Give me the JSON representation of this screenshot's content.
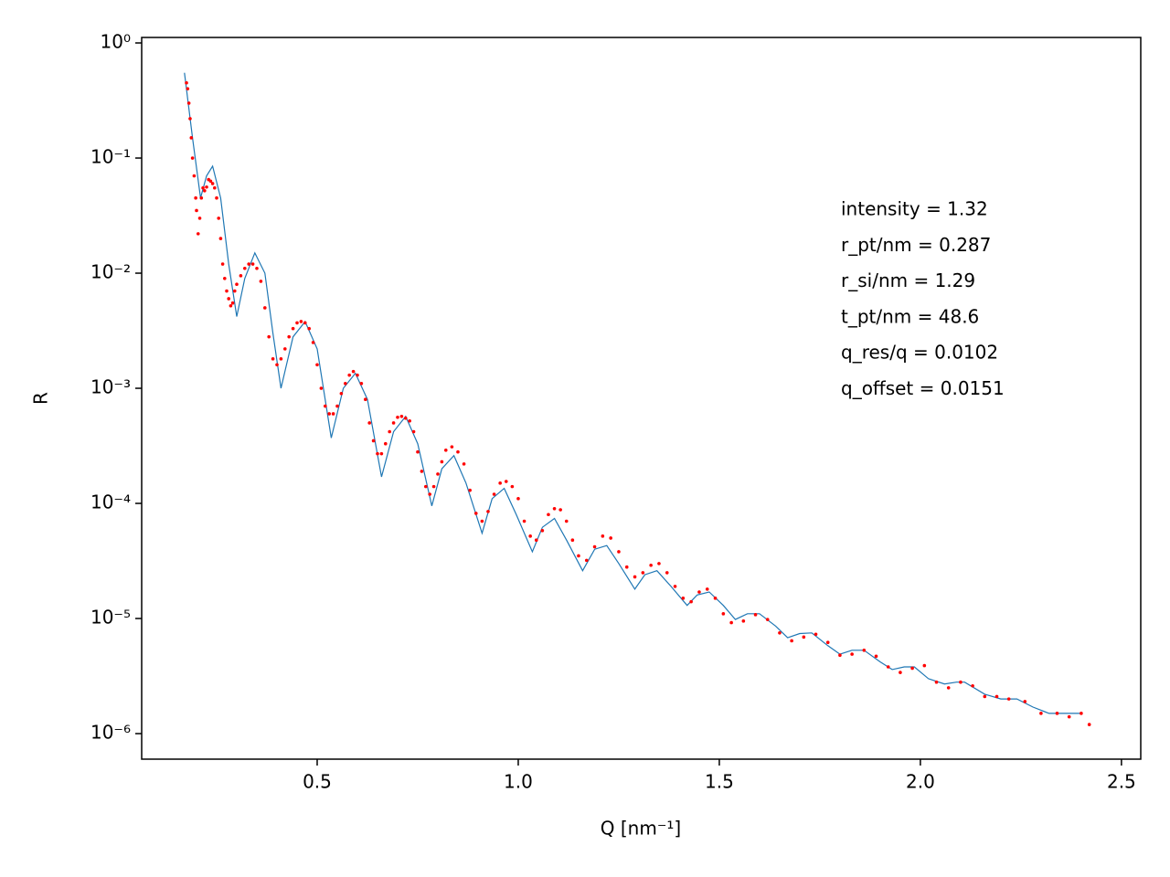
{
  "chart_data": {
    "type": "scatter",
    "xlabel": "Q [nm⁻¹]",
    "ylabel": "R",
    "xlim": [
      0.0636,
      2.548
    ],
    "ylim": [
      6e-07,
      1.116
    ],
    "log_y": true,
    "xticks": [
      0.5,
      {
        "value": 1.0,
        "label": "1.0"
      },
      1.5,
      {
        "value": 2.0,
        "label": "2.0"
      },
      2.5
    ],
    "yticks": [
      {
        "value": 1,
        "label": "10⁰"
      },
      {
        "value": 0.1,
        "label": "10⁻¹"
      },
      {
        "value": 0.01,
        "label": "10⁻²"
      },
      {
        "value": 0.001,
        "label": "10⁻³"
      },
      {
        "value": 0.0001,
        "label": "10⁻⁴"
      },
      {
        "value": 1e-05,
        "label": "10⁻⁵"
      },
      {
        "value": 1e-06,
        "label": "10⁻⁶"
      }
    ],
    "annotations": [
      "intensity = 1.32",
      "r_pt/nm = 0.287",
      "r_si/nm = 1.29",
      "t_pt/nm = 48.6",
      "q_res/q = 0.0102",
      "q_offset = 0.0151"
    ],
    "fit": {
      "color": "#1f77b4",
      "x": [
        0.17,
        0.19,
        0.21,
        0.225,
        0.24,
        0.26,
        0.28,
        0.3,
        0.32,
        0.345,
        0.37,
        0.39,
        0.41,
        0.44,
        0.47,
        0.5,
        0.535,
        0.565,
        0.595,
        0.625,
        0.66,
        0.69,
        0.72,
        0.75,
        0.785,
        0.81,
        0.84,
        0.87,
        0.91,
        0.935,
        0.965,
        0.995,
        1.035,
        1.06,
        1.09,
        1.12,
        1.16,
        1.19,
        1.22,
        1.25,
        1.29,
        1.315,
        1.345,
        1.38,
        1.42,
        1.445,
        1.475,
        1.51,
        1.54,
        1.57,
        1.6,
        1.64,
        1.67,
        1.7,
        1.73,
        1.77,
        1.8,
        1.83,
        1.86,
        1.9,
        1.93,
        1.96,
        1.985,
        2.02,
        2.06,
        2.09,
        2.11,
        2.16,
        2.2,
        2.24,
        2.28,
        2.32,
        2.36,
        2.4
      ],
      "values": [
        0.55,
        0.15,
        0.045,
        0.07,
        0.085,
        0.045,
        0.012,
        0.0042,
        0.009,
        0.015,
        0.01,
        0.003,
        0.001,
        0.0028,
        0.0038,
        0.0022,
        0.00037,
        0.001,
        0.00135,
        0.0008,
        0.00017,
        0.00042,
        0.00057,
        0.00033,
        9.5e-05,
        0.0002,
        0.00026,
        0.00015,
        5.5e-05,
        0.00011,
        0.000135,
        8e-05,
        3.8e-05,
        6.2e-05,
        7.4e-05,
        4.8e-05,
        2.6e-05,
        4e-05,
        4.3e-05,
        3e-05,
        1.8e-05,
        2.4e-05,
        2.6e-05,
        1.9e-05,
        1.3e-05,
        1.6e-05,
        1.7e-05,
        1.3e-05,
        9.8e-06,
        1.1e-05,
        1.1e-05,
        8.6e-06,
        6.8e-06,
        7.4e-06,
        7.5e-06,
        5.8e-06,
        4.9e-06,
        5.3e-06,
        5.3e-06,
        4.2e-06,
        3.6e-06,
        3.8e-06,
        3.8e-06,
        3e-06,
        2.7e-06,
        2.8e-06,
        2.8e-06,
        2.2e-06,
        2e-06,
        2e-06,
        1.7e-06,
        1.5e-06,
        1.5e-06,
        1.5e-06
      ]
    },
    "data": {
      "color": "#ff0000",
      "x": [
        0.175,
        0.178,
        0.181,
        0.184,
        0.187,
        0.19,
        0.194,
        0.198,
        0.2,
        0.204,
        0.208,
        0.212,
        0.216,
        0.22,
        0.225,
        0.23,
        0.235,
        0.24,
        0.245,
        0.25,
        0.255,
        0.26,
        0.265,
        0.27,
        0.275,
        0.28,
        0.285,
        0.29,
        0.295,
        0.3,
        0.31,
        0.32,
        0.33,
        0.34,
        0.35,
        0.36,
        0.37,
        0.38,
        0.39,
        0.4,
        0.41,
        0.42,
        0.43,
        0.44,
        0.45,
        0.46,
        0.47,
        0.48,
        0.49,
        0.5,
        0.51,
        0.52,
        0.53,
        0.54,
        0.55,
        0.56,
        0.57,
        0.58,
        0.59,
        0.6,
        0.61,
        0.62,
        0.63,
        0.64,
        0.65,
        0.66,
        0.67,
        0.68,
        0.69,
        0.7,
        0.71,
        0.72,
        0.73,
        0.74,
        0.75,
        0.76,
        0.77,
        0.78,
        0.79,
        0.8,
        0.81,
        0.82,
        0.835,
        0.85,
        0.865,
        0.88,
        0.895,
        0.91,
        0.925,
        0.94,
        0.955,
        0.97,
        0.985,
        1.0,
        1.015,
        1.03,
        1.045,
        1.06,
        1.075,
        1.09,
        1.105,
        1.12,
        1.135,
        1.15,
        1.17,
        1.19,
        1.21,
        1.23,
        1.25,
        1.27,
        1.29,
        1.31,
        1.33,
        1.35,
        1.37,
        1.39,
        1.41,
        1.43,
        1.45,
        1.47,
        1.49,
        1.51,
        1.53,
        1.56,
        1.59,
        1.62,
        1.65,
        1.68,
        1.71,
        1.74,
        1.77,
        1.8,
        1.83,
        1.86,
        1.89,
        1.92,
        1.95,
        1.98,
        2.01,
        2.04,
        2.07,
        2.1,
        2.13,
        2.16,
        2.19,
        2.22,
        2.26,
        2.3,
        2.34,
        2.37,
        2.4,
        2.42
      ],
      "values": [
        0.45,
        0.4,
        0.3,
        0.22,
        0.15,
        0.1,
        0.07,
        0.045,
        0.035,
        0.022,
        0.03,
        0.045,
        0.055,
        0.052,
        0.056,
        0.065,
        0.063,
        0.06,
        0.055,
        0.045,
        0.03,
        0.02,
        0.012,
        0.009,
        0.007,
        0.006,
        0.0052,
        0.0055,
        0.007,
        0.008,
        0.0095,
        0.011,
        0.012,
        0.012,
        0.011,
        0.0085,
        0.005,
        0.0028,
        0.0018,
        0.0016,
        0.0018,
        0.0022,
        0.0028,
        0.0033,
        0.0037,
        0.0038,
        0.0037,
        0.0033,
        0.0025,
        0.0016,
        0.001,
        0.0007,
        0.0006,
        0.0006,
        0.0007,
        0.0009,
        0.0011,
        0.0013,
        0.0014,
        0.0013,
        0.0011,
        0.0008,
        0.0005,
        0.00035,
        0.00027,
        0.00027,
        0.00033,
        0.00042,
        0.0005,
        0.00056,
        0.00057,
        0.00055,
        0.00052,
        0.00042,
        0.00028,
        0.00019,
        0.00014,
        0.00012,
        0.00014,
        0.00018,
        0.00023,
        0.00029,
        0.00031,
        0.00028,
        0.00022,
        0.00013,
        8.2e-05,
        7e-05,
        8.5e-05,
        0.00012,
        0.00015,
        0.000155,
        0.00014,
        0.00011,
        7e-05,
        5.2e-05,
        4.8e-05,
        5.8e-05,
        8e-05,
        9e-05,
        8.8e-05,
        7e-05,
        4.8e-05,
        3.5e-05,
        3.2e-05,
        4.2e-05,
        5.2e-05,
        5e-05,
        3.8e-05,
        2.8e-05,
        2.3e-05,
        2.5e-05,
        2.9e-05,
        3e-05,
        2.5e-05,
        1.9e-05,
        1.5e-05,
        1.4e-05,
        1.7e-05,
        1.8e-05,
        1.5e-05,
        1.1e-05,
        9.2e-06,
        9.5e-06,
        1.08e-05,
        9.8e-06,
        7.5e-06,
        6.4e-06,
        6.9e-06,
        7.3e-06,
        6.2e-06,
        4.8e-06,
        4.9e-06,
        5.3e-06,
        4.7e-06,
        3.8e-06,
        3.4e-06,
        3.7e-06,
        3.9e-06,
        2.8e-06,
        2.5e-06,
        2.8e-06,
        2.6e-06,
        2.1e-06,
        2.1e-06,
        2e-06,
        1.9e-06,
        1.5e-06,
        1.5e-06,
        1.4e-06,
        1.5e-06,
        1.2e-06
      ]
    }
  }
}
